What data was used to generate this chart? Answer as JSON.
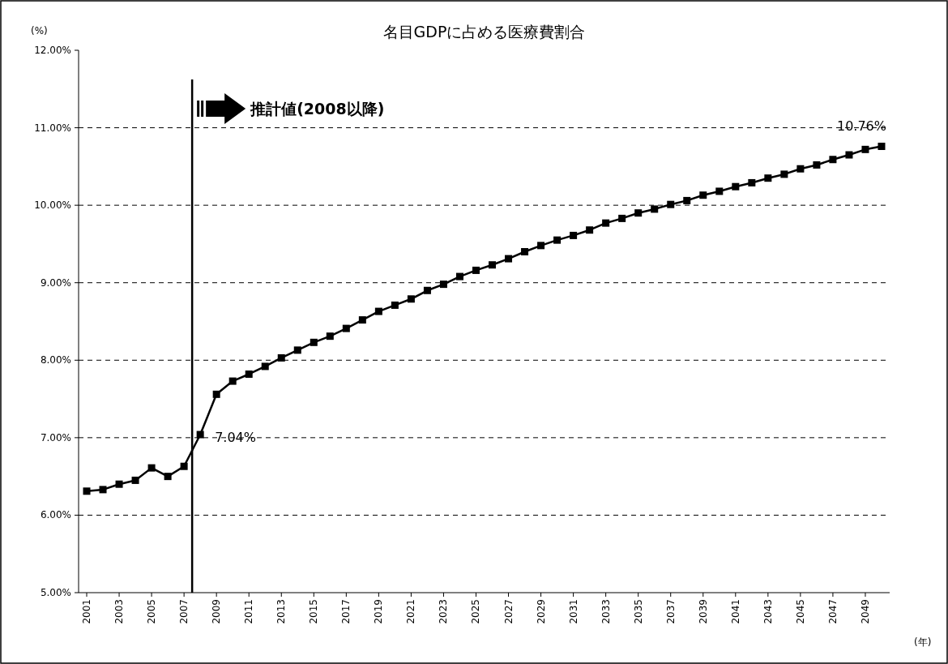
{
  "chart_data": {
    "type": "line",
    "title": "名目GDPに占める医療費割合",
    "xlabel": "(年)",
    "ylabel": "(%)",
    "x": [
      2001,
      2002,
      2003,
      2004,
      2005,
      2006,
      2007,
      2008,
      2009,
      2010,
      2011,
      2012,
      2013,
      2014,
      2015,
      2016,
      2017,
      2018,
      2019,
      2020,
      2021,
      2022,
      2023,
      2024,
      2025,
      2026,
      2027,
      2028,
      2029,
      2030,
      2031,
      2032,
      2033,
      2034,
      2035,
      2036,
      2037,
      2038,
      2039,
      2040,
      2041,
      2042,
      2043,
      2044,
      2045,
      2046,
      2047,
      2048,
      2049,
      2050
    ],
    "values": [
      6.31,
      6.33,
      6.4,
      6.45,
      6.61,
      6.5,
      6.63,
      7.04,
      7.56,
      7.73,
      7.82,
      7.92,
      8.03,
      8.13,
      8.23,
      8.31,
      8.41,
      8.52,
      8.63,
      8.71,
      8.79,
      8.9,
      8.98,
      9.08,
      9.16,
      9.23,
      9.31,
      9.4,
      9.48,
      9.55,
      9.61,
      9.68,
      9.77,
      9.83,
      9.9,
      9.95,
      10.01,
      10.06,
      10.13,
      10.18,
      10.24,
      10.29,
      10.35,
      10.4,
      10.47,
      10.52,
      10.59,
      10.65,
      10.72,
      10.76
    ],
    "value_labels": [
      null,
      null,
      null,
      null,
      null,
      null,
      null,
      "7.04%",
      null,
      null,
      null,
      null,
      null,
      null,
      null,
      null,
      null,
      null,
      null,
      null,
      null,
      null,
      null,
      null,
      null,
      null,
      null,
      null,
      null,
      null,
      null,
      null,
      null,
      null,
      null,
      null,
      null,
      null,
      null,
      null,
      null,
      null,
      null,
      null,
      null,
      null,
      null,
      null,
      null,
      "10.76%"
    ],
    "color": "#000000",
    "marker": "square",
    "line_style": "solid",
    "grid": "y",
    "xlim": [
      2000.5,
      2050.5
    ],
    "xticks": [
      2001,
      2003,
      2005,
      2007,
      2009,
      2011,
      2013,
      2015,
      2017,
      2019,
      2021,
      2023,
      2025,
      2027,
      2029,
      2031,
      2033,
      2035,
      2037,
      2039,
      2041,
      2043,
      2045,
      2047,
      2049
    ],
    "ylim": [
      5,
      12
    ],
    "yticks": [
      {
        "value": 5,
        "label": "5.00%"
      },
      {
        "value": 6,
        "label": "6.00%"
      },
      {
        "value": 7,
        "label": "7.00%"
      },
      {
        "value": 8,
        "label": "8.00%"
      },
      {
        "value": 9,
        "label": "9.00%"
      },
      {
        "value": 10,
        "label": "10.00%"
      },
      {
        "value": 11,
        "label": "11.00%"
      },
      {
        "value": 12,
        "label": "12.00%"
      }
    ],
    "ref_lines": [
      {
        "axis": "x",
        "value": 2007.5,
        "label": "推計値(2008以降)",
        "color": "#000000"
      }
    ]
  }
}
